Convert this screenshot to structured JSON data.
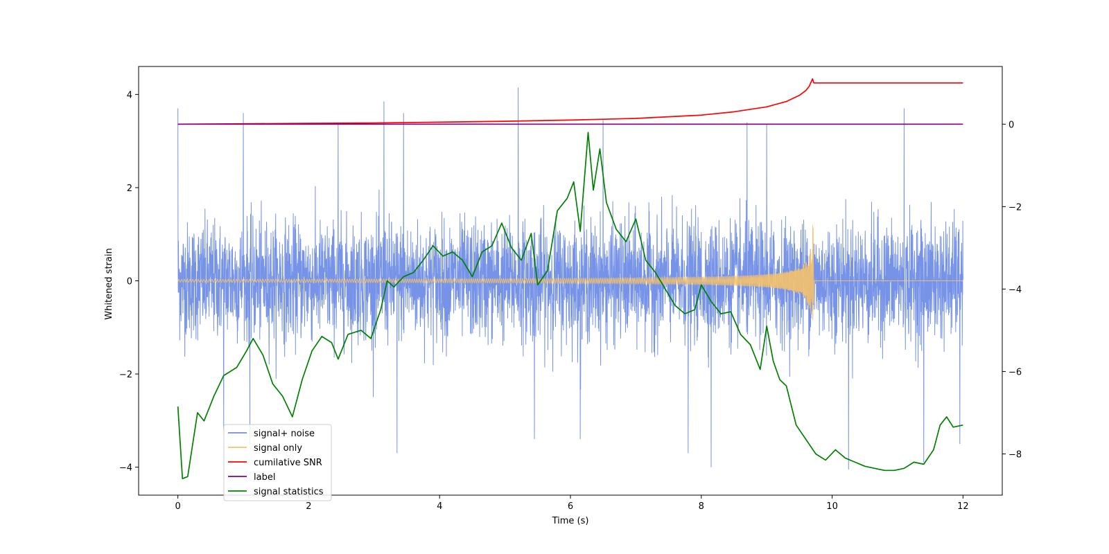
{
  "chart_data": {
    "type": "line",
    "xlabel": "Time (s)",
    "ylabel": "Whitened strain",
    "xlim": [
      -0.6,
      12.6
    ],
    "ylim_left": [
      -4.6,
      4.6
    ],
    "ylim_right": [
      -9.0,
      1.4
    ],
    "x_ticks": [
      0,
      2,
      4,
      6,
      8,
      10,
      12
    ],
    "y_ticks_left": [
      -4,
      -2,
      0,
      2,
      4
    ],
    "y_ticks_right": [
      -8,
      -6,
      -4,
      -2,
      0
    ],
    "grid": false,
    "legend_position": "lower-left",
    "series": [
      {
        "name": "signal+ noise",
        "color": "#6f8de6",
        "axis": "left",
        "kind": "noise",
        "x_range": [
          0,
          12
        ],
        "amplitude_typical": 1.5,
        "amplitude_peak": 4.1,
        "spikes": [
          [
            0.0,
            3.7
          ],
          [
            1.0,
            3.6
          ],
          [
            2.45,
            3.4
          ],
          [
            3.15,
            3.85
          ],
          [
            3.45,
            3.6
          ],
          [
            5.2,
            4.15
          ],
          [
            6.5,
            3.45
          ],
          [
            8.7,
            3.4
          ],
          [
            9.0,
            3.35
          ],
          [
            11.1,
            3.7
          ],
          [
            0.7,
            -3.2
          ],
          [
            1.1,
            -3.5
          ],
          [
            3.35,
            -3.7
          ],
          [
            5.45,
            -3.4
          ],
          [
            6.15,
            -3.4
          ],
          [
            7.8,
            -3.7
          ],
          [
            8.15,
            -4.0
          ],
          [
            10.25,
            -4.05
          ],
          [
            11.4,
            -3.9
          ],
          [
            11.95,
            -3.5
          ]
        ]
      },
      {
        "name": "signal only",
        "color": "#f5c26b",
        "axis": "left",
        "kind": "chirp",
        "x_range": [
          0,
          12
        ],
        "merger_time": 9.72,
        "peak_amplitude": 1.2
      },
      {
        "name": "cumilative SNR",
        "color": "#ff0000",
        "axis": "right",
        "x": [
          0,
          1,
          2,
          3,
          4,
          5,
          6,
          7,
          8,
          8.5,
          9,
          9.3,
          9.5,
          9.6,
          9.65,
          9.7,
          9.72,
          10,
          11,
          12
        ],
        "values": [
          0,
          0.01,
          0.02,
          0.03,
          0.05,
          0.07,
          0.1,
          0.14,
          0.22,
          0.3,
          0.42,
          0.55,
          0.7,
          0.82,
          0.92,
          1.1,
          1.0,
          1.0,
          1.0,
          1.0
        ]
      },
      {
        "name": "label",
        "color": "#800080",
        "axis": "right",
        "x": [
          0,
          12
        ],
        "values": [
          0,
          0
        ]
      },
      {
        "name": "signal statistics",
        "color": "#008000",
        "axis": "right",
        "x": [
          0,
          0.07,
          0.15,
          0.3,
          0.4,
          0.55,
          0.7,
          0.9,
          1.05,
          1.15,
          1.3,
          1.45,
          1.6,
          1.75,
          1.9,
          2.05,
          2.2,
          2.35,
          2.45,
          2.6,
          2.8,
          2.95,
          3.1,
          3.2,
          3.3,
          3.45,
          3.6,
          3.75,
          3.9,
          4.05,
          4.2,
          4.35,
          4.5,
          4.65,
          4.8,
          4.95,
          5.1,
          5.25,
          5.4,
          5.5,
          5.65,
          5.8,
          5.95,
          6.05,
          6.15,
          6.27,
          6.35,
          6.45,
          6.55,
          6.7,
          6.85,
          7.0,
          7.15,
          7.3,
          7.45,
          7.6,
          7.75,
          7.9,
          8.0,
          8.15,
          8.3,
          8.45,
          8.6,
          8.75,
          8.9,
          9.0,
          9.1,
          9.2,
          9.3,
          9.45,
          9.6,
          9.75,
          9.9,
          10.05,
          10.2,
          10.35,
          10.5,
          10.65,
          10.8,
          10.95,
          11.1,
          11.25,
          11.4,
          11.55,
          11.65,
          11.75,
          11.85,
          12.0
        ],
        "values": [
          -6.85,
          -8.6,
          -8.55,
          -7.0,
          -7.2,
          -6.6,
          -6.1,
          -5.9,
          -5.5,
          -5.2,
          -5.6,
          -6.3,
          -6.6,
          -7.1,
          -6.2,
          -5.5,
          -5.15,
          -5.3,
          -5.7,
          -5.1,
          -5.0,
          -5.2,
          -4.5,
          -3.8,
          -3.95,
          -3.7,
          -3.6,
          -3.3,
          -2.95,
          -3.2,
          -3.1,
          -3.3,
          -3.7,
          -3.1,
          -2.95,
          -2.4,
          -3.0,
          -3.3,
          -2.65,
          -3.9,
          -3.55,
          -2.1,
          -1.8,
          -1.4,
          -2.6,
          -0.2,
          -1.6,
          -0.6,
          -1.9,
          -2.55,
          -2.85,
          -2.3,
          -3.3,
          -3.6,
          -4.0,
          -4.4,
          -4.6,
          -4.5,
          -3.9,
          -4.3,
          -4.6,
          -4.55,
          -5.1,
          -5.35,
          -5.95,
          -4.9,
          -5.75,
          -6.2,
          -6.35,
          -7.3,
          -7.65,
          -8.0,
          -8.15,
          -7.9,
          -8.1,
          -8.2,
          -8.3,
          -8.35,
          -8.4,
          -8.4,
          -8.35,
          -8.2,
          -8.25,
          -7.9,
          -7.3,
          -7.1,
          -7.35,
          -7.3
        ]
      }
    ]
  }
}
